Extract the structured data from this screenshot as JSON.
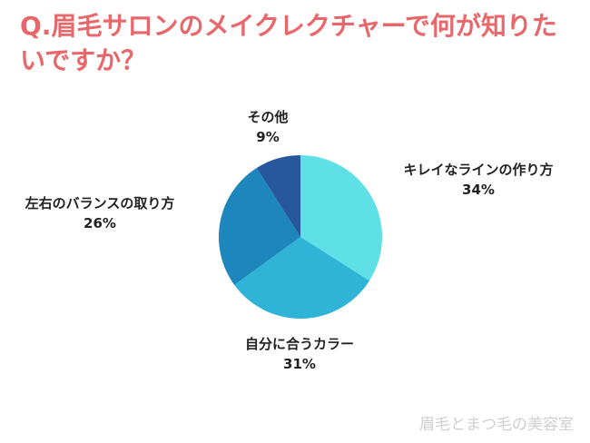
{
  "header": {
    "title": "Q.眉毛サロンのメイクレクチャーで何が知りたいですか？"
  },
  "watermark": "眉毛とまつ毛の美容室",
  "colors": {
    "title": "#e8676a",
    "slices": [
      "#5ee0e6",
      "#2fb3d6",
      "#1d86bd",
      "#27579c"
    ]
  },
  "chart_data": {
    "type": "pie",
    "title": "Q.眉毛サロンのメイクレクチャーで何が知りたいですか？",
    "start": "12 o'clock, clockwise",
    "slices": [
      {
        "label": "キレイなラインの作り方",
        "value": 34,
        "display": "34%"
      },
      {
        "label": "自分に合うカラー",
        "value": 31,
        "display": "31%"
      },
      {
        "label": "左右のバランスの取り方",
        "value": 26,
        "display": "26%"
      },
      {
        "label": "その他",
        "value": 9,
        "display": "9%"
      }
    ]
  }
}
